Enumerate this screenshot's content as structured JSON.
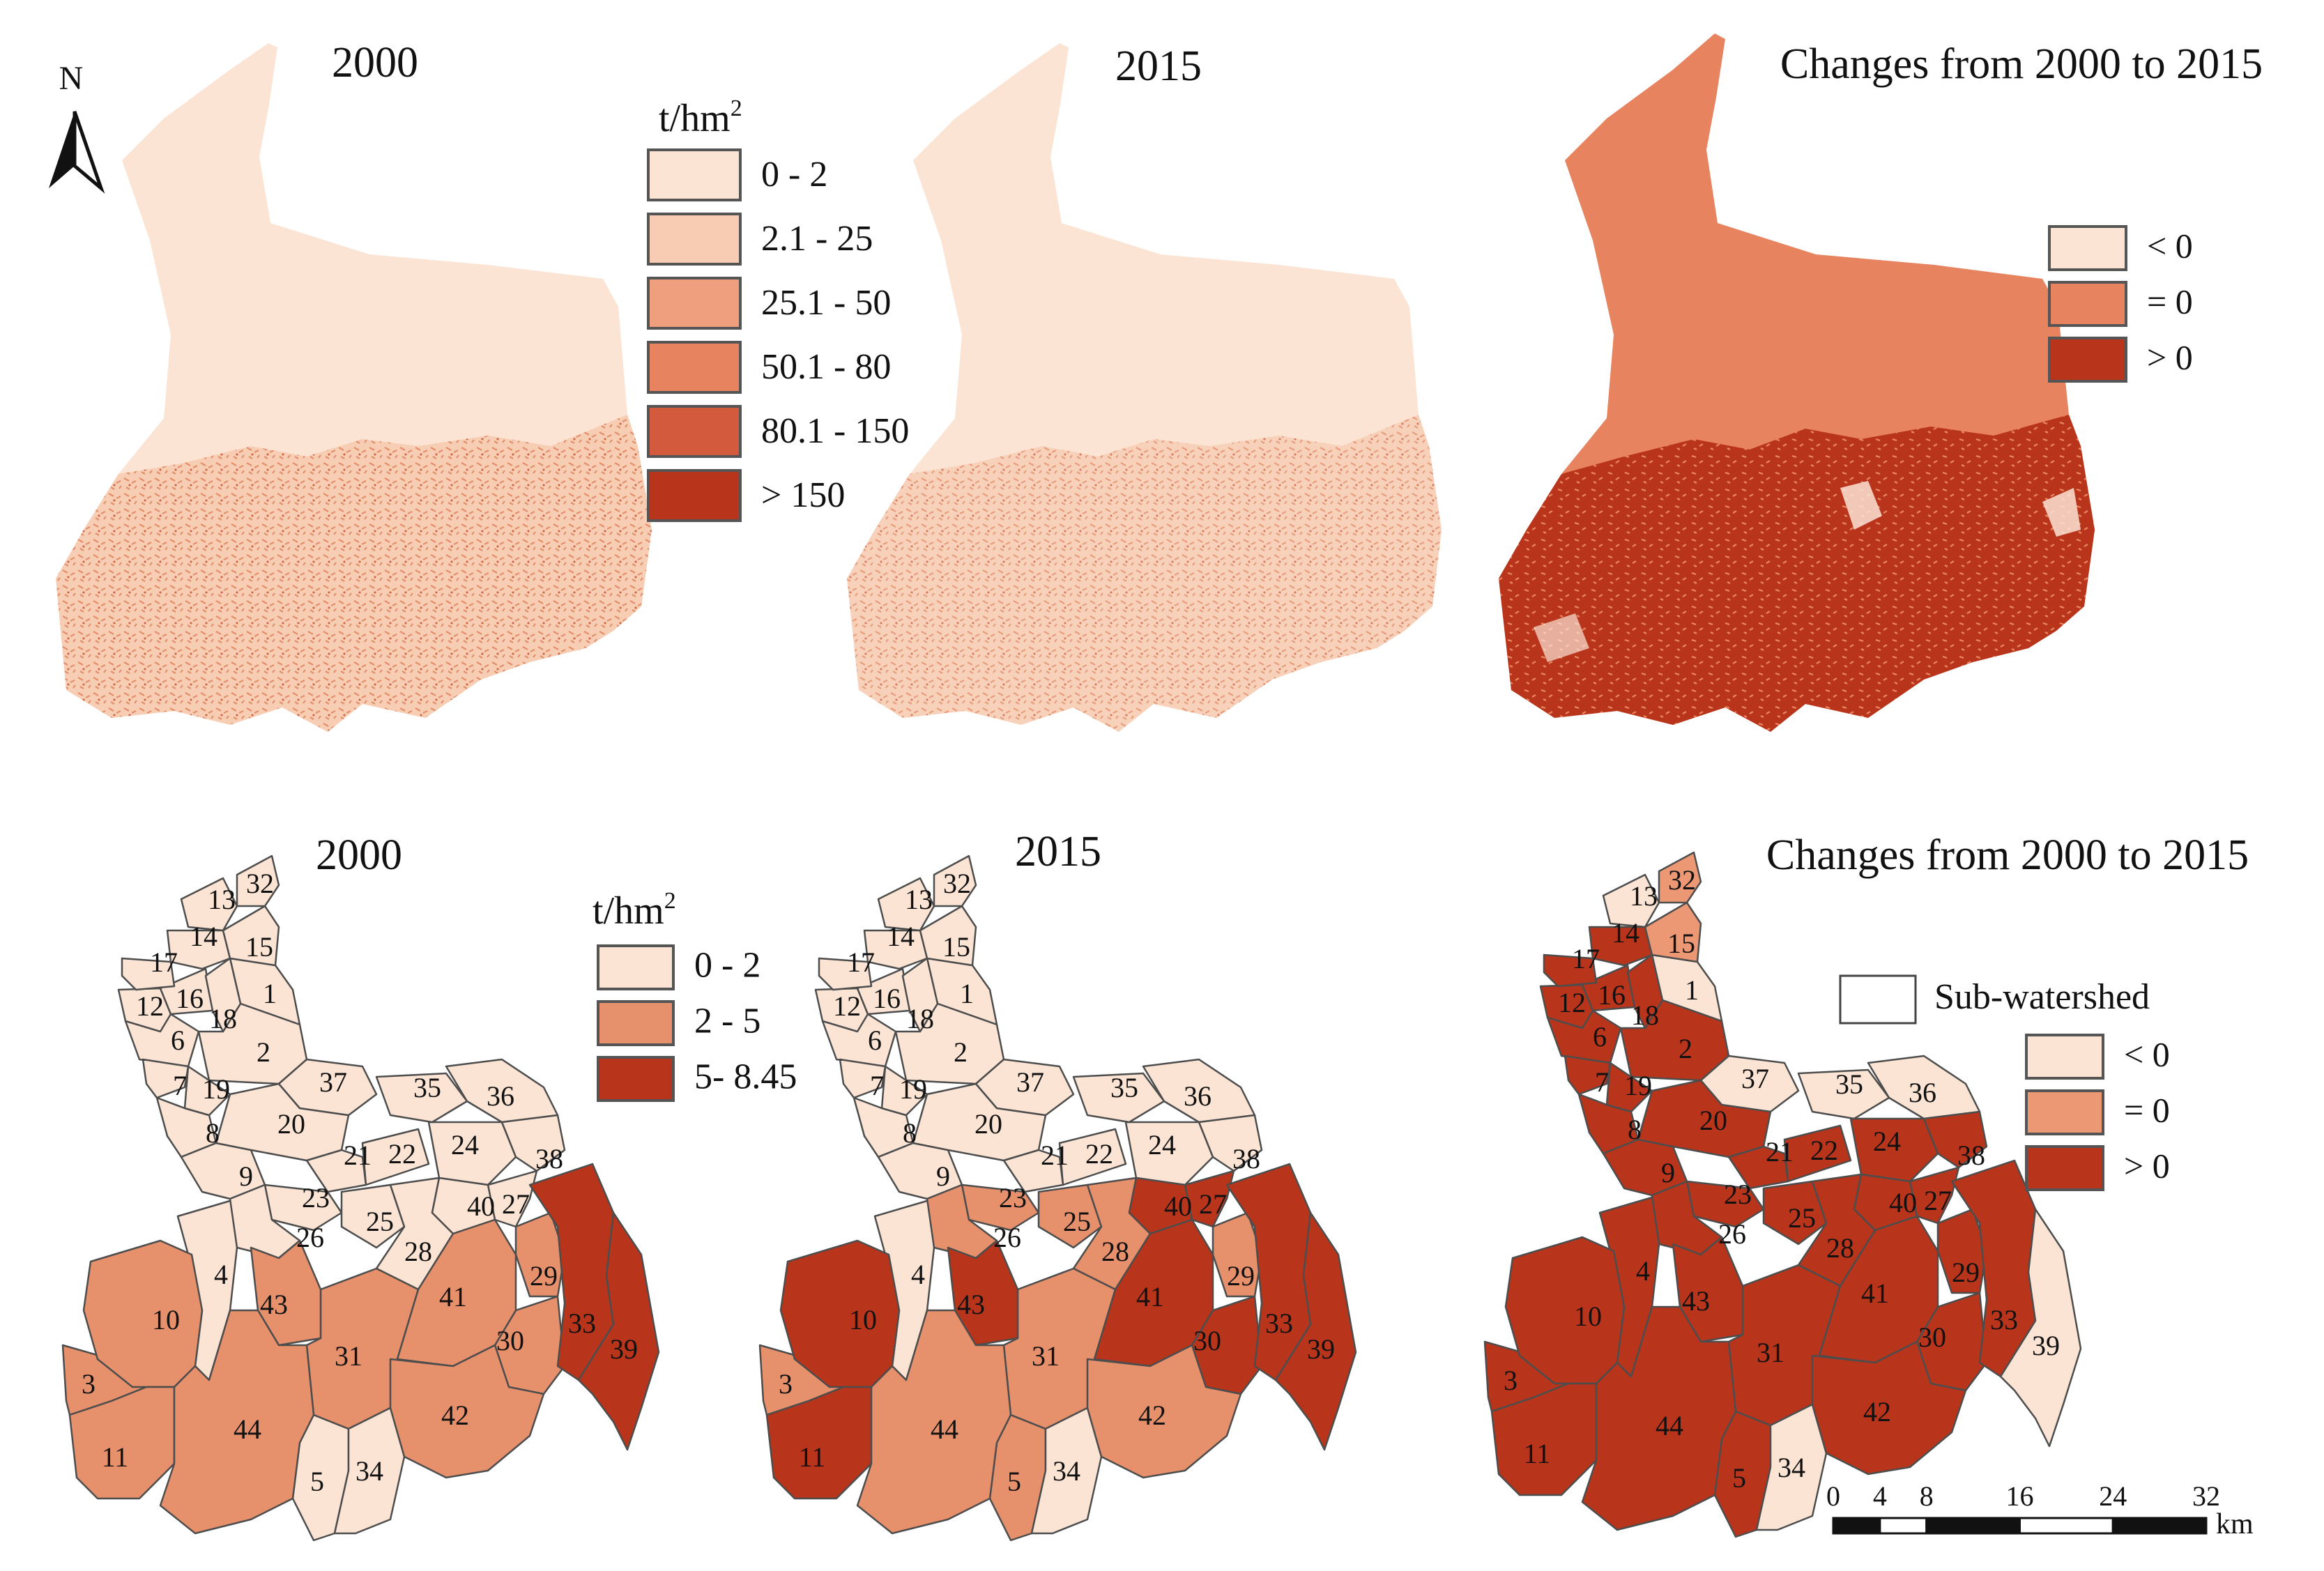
{
  "colors": {
    "c1": "#fbe4d4",
    "c2": "#f7ccb3",
    "c3": "#ef9f7e",
    "c4": "#e7835f",
    "c5": "#d35a3c",
    "c6": "#b8341b",
    "outline": "#4d4d4d"
  },
  "north_arrow": {
    "letter": "N"
  },
  "top_row": {
    "panels": [
      {
        "title": "2000"
      },
      {
        "title": "2015"
      },
      {
        "title": "Changes from 2000 to 2015"
      }
    ],
    "legend_erosion": {
      "unit_base": "t/hm",
      "unit_sup": "2",
      "classes": [
        {
          "label": "0 - 2",
          "color": "#fbe4d4"
        },
        {
          "label": "2.1 - 25",
          "color": "#f7ccb3"
        },
        {
          "label": "25.1 - 50",
          "color": "#ef9f7e"
        },
        {
          "label": "50.1 - 80",
          "color": "#e7835f"
        },
        {
          "label": "80.1 - 150",
          "color": "#d35a3c"
        },
        {
          "label": "> 150",
          "color": "#b8341b"
        }
      ]
    },
    "legend_change": {
      "classes": [
        {
          "label": "< 0",
          "color": "#fbe4d4"
        },
        {
          "label": "= 0",
          "color": "#e7835f"
        },
        {
          "label": "> 0",
          "color": "#b8341b"
        }
      ]
    }
  },
  "bottom_row": {
    "panels": [
      {
        "title": "2000"
      },
      {
        "title": "2015"
      },
      {
        "title": "Changes from 2000 to 2015"
      }
    ],
    "legend_erosion": {
      "unit_base": "t/hm",
      "unit_sup": "2",
      "classes": [
        {
          "label": "0 - 2",
          "color": "#fbe4d4"
        },
        {
          "label": "2 - 5",
          "color": "#e7906c"
        },
        {
          "label": "5- 8.45",
          "color": "#b8341b"
        }
      ]
    },
    "legend_change": {
      "subwatershed_label": "Sub-watershed",
      "classes": [
        {
          "label": "< 0",
          "color": "#fbe4d4"
        },
        {
          "label": "= 0",
          "color": "#ec9875"
        },
        {
          "label": "> 0",
          "color": "#b8341b"
        }
      ]
    },
    "subwatersheds": [
      {
        "id": "1",
        "y2000": 1,
        "y2015": 1,
        "chg": 1
      },
      {
        "id": "2",
        "y2000": 1,
        "y2015": 1,
        "chg": 3
      },
      {
        "id": "3",
        "y2000": 2,
        "y2015": 2,
        "chg": 3
      },
      {
        "id": "4",
        "y2000": 1,
        "y2015": 1,
        "chg": 3
      },
      {
        "id": "5",
        "y2000": 1,
        "y2015": 2,
        "chg": 3
      },
      {
        "id": "6",
        "y2000": 1,
        "y2015": 1,
        "chg": 3
      },
      {
        "id": "7",
        "y2000": 1,
        "y2015": 1,
        "chg": 3
      },
      {
        "id": "8",
        "y2000": 1,
        "y2015": 1,
        "chg": 3
      },
      {
        "id": "9",
        "y2000": 1,
        "y2015": 1,
        "chg": 3
      },
      {
        "id": "10",
        "y2000": 2,
        "y2015": 3,
        "chg": 3
      },
      {
        "id": "11",
        "y2000": 2,
        "y2015": 3,
        "chg": 3
      },
      {
        "id": "12",
        "y2000": 1,
        "y2015": 1,
        "chg": 3
      },
      {
        "id": "13",
        "y2000": 1,
        "y2015": 1,
        "chg": 1
      },
      {
        "id": "14",
        "y2000": 1,
        "y2015": 1,
        "chg": 3
      },
      {
        "id": "15",
        "y2000": 1,
        "y2015": 1,
        "chg": 2
      },
      {
        "id": "16",
        "y2000": 1,
        "y2015": 1,
        "chg": 3
      },
      {
        "id": "17",
        "y2000": 1,
        "y2015": 1,
        "chg": 3
      },
      {
        "id": "18",
        "y2000": 1,
        "y2015": 1,
        "chg": 3
      },
      {
        "id": "19",
        "y2000": 1,
        "y2015": 1,
        "chg": 3
      },
      {
        "id": "20",
        "y2000": 1,
        "y2015": 1,
        "chg": 3
      },
      {
        "id": "21",
        "y2000": 1,
        "y2015": 1,
        "chg": 3
      },
      {
        "id": "22",
        "y2000": 1,
        "y2015": 1,
        "chg": 3
      },
      {
        "id": "23",
        "y2000": 1,
        "y2015": 2,
        "chg": 3
      },
      {
        "id": "24",
        "y2000": 1,
        "y2015": 1,
        "chg": 3
      },
      {
        "id": "25",
        "y2000": 1,
        "y2015": 2,
        "chg": 3
      },
      {
        "id": "26",
        "y2000": 1,
        "y2015": 2,
        "chg": 3
      },
      {
        "id": "27",
        "y2000": 1,
        "y2015": 3,
        "chg": 3
      },
      {
        "id": "28",
        "y2000": 1,
        "y2015": 2,
        "chg": 3
      },
      {
        "id": "29",
        "y2000": 2,
        "y2015": 2,
        "chg": 3
      },
      {
        "id": "30",
        "y2000": 2,
        "y2015": 3,
        "chg": 3
      },
      {
        "id": "31",
        "y2000": 2,
        "y2015": 2,
        "chg": 3
      },
      {
        "id": "32",
        "y2000": 1,
        "y2015": 1,
        "chg": 2
      },
      {
        "id": "33",
        "y2000": 3,
        "y2015": 3,
        "chg": 3
      },
      {
        "id": "34",
        "y2000": 1,
        "y2015": 1,
        "chg": 1
      },
      {
        "id": "35",
        "y2000": 1,
        "y2015": 1,
        "chg": 1
      },
      {
        "id": "36",
        "y2000": 1,
        "y2015": 1,
        "chg": 1
      },
      {
        "id": "37",
        "y2000": 1,
        "y2015": 1,
        "chg": 1
      },
      {
        "id": "38",
        "y2000": 1,
        "y2015": 1,
        "chg": 3
      },
      {
        "id": "39",
        "y2000": 3,
        "y2015": 3,
        "chg": 1
      },
      {
        "id": "40",
        "y2000": 1,
        "y2015": 3,
        "chg": 3
      },
      {
        "id": "41",
        "y2000": 2,
        "y2015": 3,
        "chg": 3
      },
      {
        "id": "42",
        "y2000": 2,
        "y2015": 2,
        "chg": 3
      },
      {
        "id": "43",
        "y2000": 2,
        "y2015": 3,
        "chg": 3
      },
      {
        "id": "44",
        "y2000": 2,
        "y2015": 2,
        "chg": 3
      }
    ],
    "scale_bar": {
      "ticks": [
        "0",
        "4",
        "8",
        "16",
        "24",
        "32"
      ],
      "unit": "km"
    }
  }
}
